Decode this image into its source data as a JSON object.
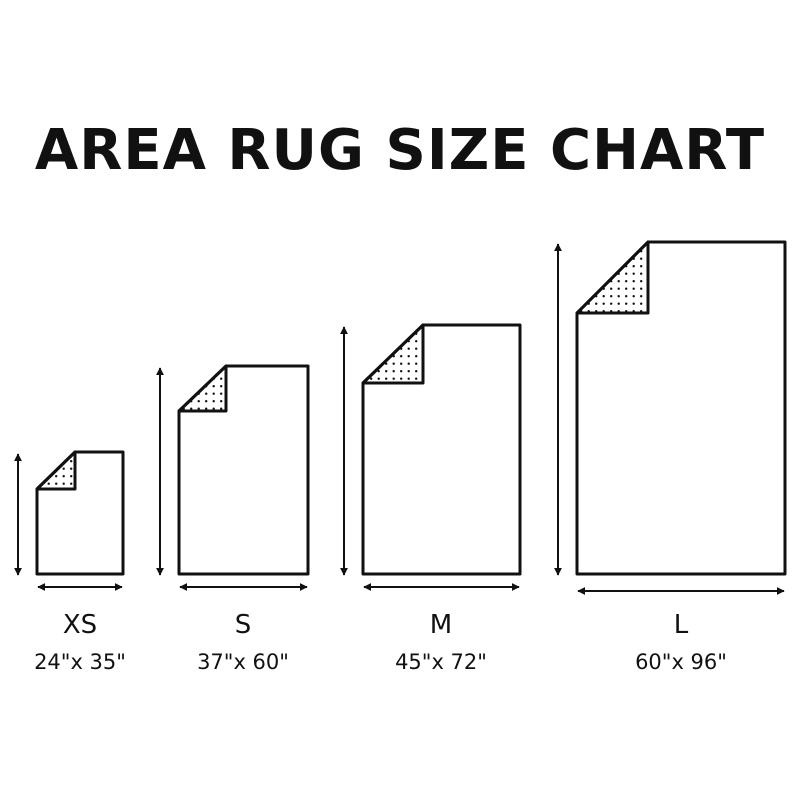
{
  "title": "AREA RUG SIZE CHART",
  "colors": {
    "ink": "#111111",
    "background": "#ffffff"
  },
  "rugs": [
    {
      "size": "XS",
      "dimensions": "24\"x 35\""
    },
    {
      "size": "S",
      "dimensions": "37\"x 60\""
    },
    {
      "size": "M",
      "dimensions": "45\"x 72\""
    },
    {
      "size": "L",
      "dimensions": "60\"x 96\""
    }
  ]
}
